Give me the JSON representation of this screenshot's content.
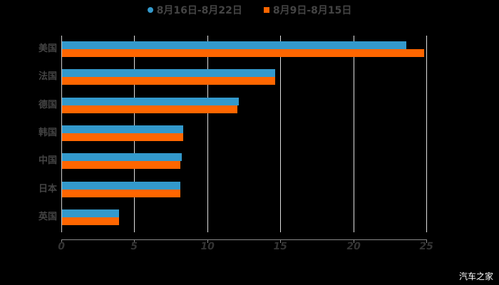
{
  "chart_data": {
    "type": "bar",
    "orientation": "horizontal",
    "title": "",
    "xlabel": "",
    "ylabel": "",
    "categories": [
      "美国",
      "法国",
      "德国",
      "韩国",
      "中国",
      "日本",
      "英国"
    ],
    "series": [
      {
        "name": "8月16日-8月22日",
        "color": "#3399cc",
        "values": [
          23.6,
          14.6,
          12.1,
          8.3,
          8.2,
          8.1,
          3.9
        ]
      },
      {
        "name": "8月9日-8月15日",
        "color": "#ff6600",
        "values": [
          24.8,
          14.6,
          12.0,
          8.3,
          8.1,
          8.1,
          3.9
        ]
      }
    ],
    "xlim": [
      0,
      25
    ],
    "xticks": [
      "0",
      "5",
      "10",
      "15",
      "20",
      "25"
    ],
    "grid": true,
    "legend_position": "top"
  },
  "legend": {
    "items": [
      {
        "label": "8月16日-8月22日",
        "color": "#3399cc"
      },
      {
        "label": "8月9日-8月15日",
        "color": "#ff6600"
      }
    ]
  },
  "watermark": "汽车之家"
}
